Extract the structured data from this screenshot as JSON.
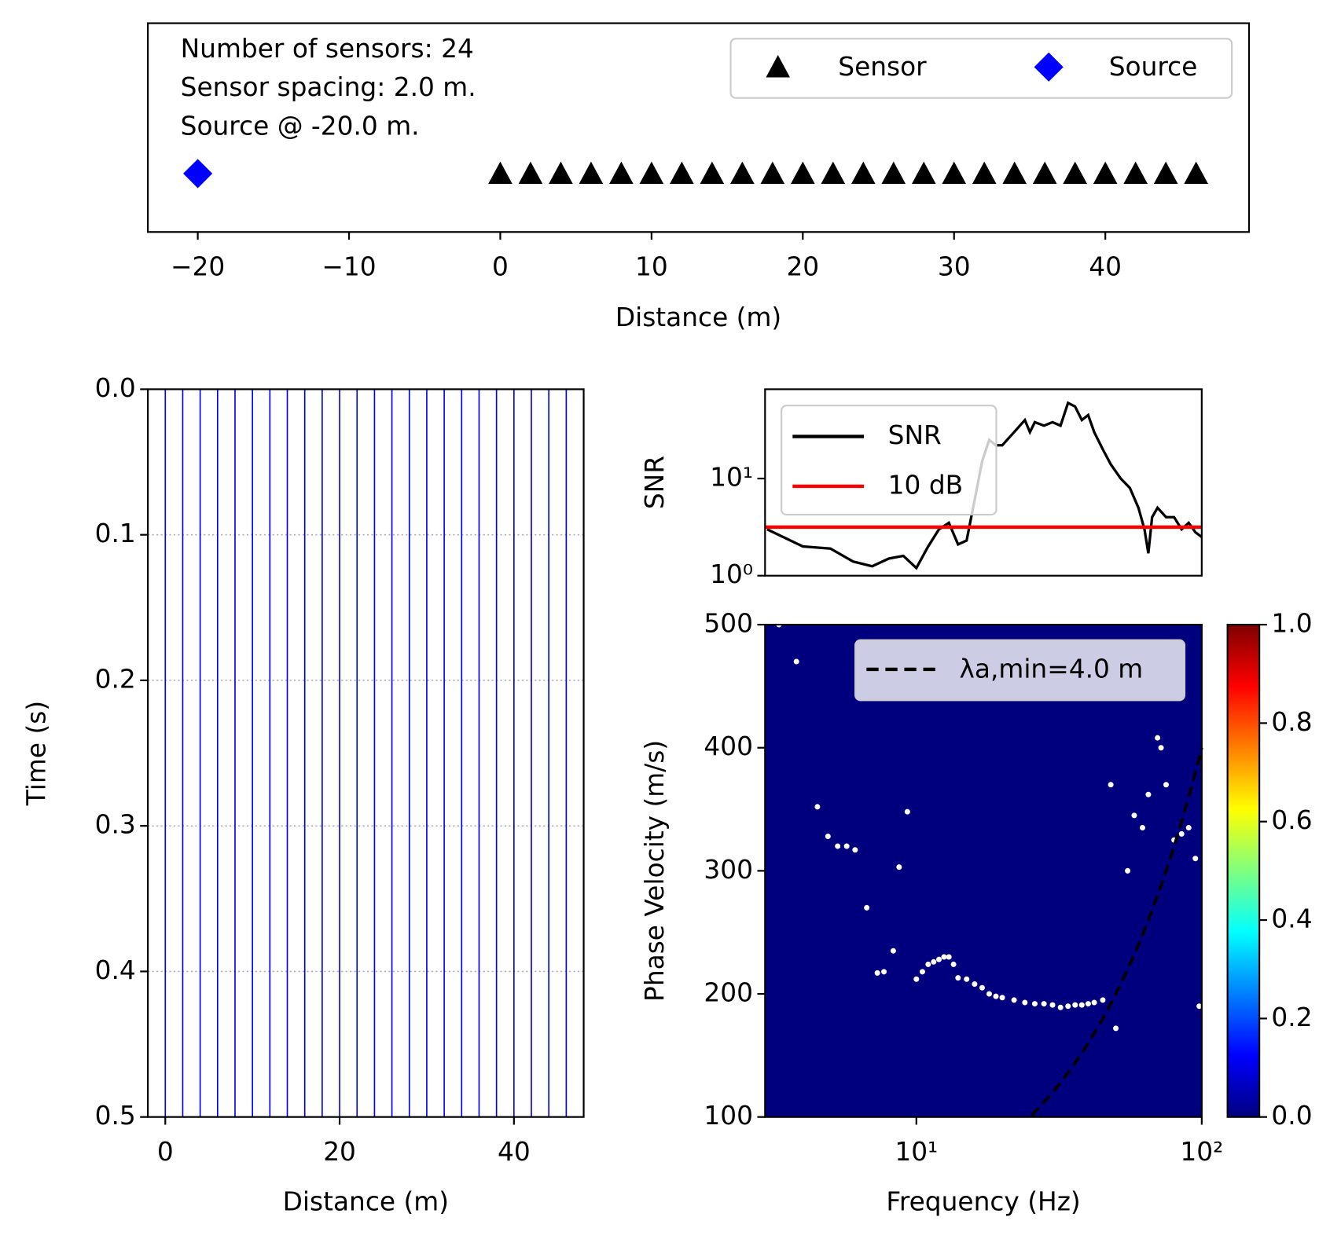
{
  "chart_data": [
    {
      "type": "scatter",
      "annotations": [
        "Number of sensors: 24",
        "Sensor spacing: 2.0 m.",
        "Source @ -20.0 m."
      ],
      "xlabel": "Distance (m)",
      "xlim": [
        -23.3,
        49.5
      ],
      "xticks": [
        {
          "value": -20,
          "label": "−20"
        },
        {
          "value": -10,
          "label": "−10"
        },
        0,
        10,
        20,
        30,
        40
      ],
      "legend": "upper right",
      "series": [
        {
          "name": "Sensor",
          "color": "#000000",
          "marker": "triangle",
          "x": [
            0,
            2,
            4,
            6,
            8,
            10,
            12,
            14,
            16,
            18,
            20,
            22,
            24,
            26,
            28,
            30,
            32,
            34,
            36,
            38,
            40,
            42,
            44,
            46
          ]
        },
        {
          "name": "Source",
          "color": "#0000ff",
          "marker": "diamond",
          "x": [
            -20
          ]
        }
      ]
    },
    {
      "type": "waterfall",
      "xlabel": "Distance (m)",
      "ylabel": "Time (s)",
      "xlim": [
        -2,
        48
      ],
      "ylim": [
        0.5,
        0
      ],
      "xticks": [
        0,
        20,
        40
      ],
      "yticks": [
        {
          "value": 0,
          "label": "0.0"
        },
        0.1,
        0.2,
        0.3,
        0.4,
        0.5
      ],
      "grid": true,
      "color": "#0000ff",
      "offsets": [
        0,
        2,
        4,
        6,
        8,
        10,
        12,
        14,
        16,
        18,
        20,
        22,
        24,
        26,
        28,
        30,
        32,
        34,
        36,
        38,
        40,
        42,
        44,
        46
      ]
    },
    {
      "type": "line",
      "ylabel": "SNR",
      "xscale": "log",
      "yscale": "log",
      "xlim": [
        2.95,
        100
      ],
      "ylim": [
        1,
        83
      ],
      "yticks": [
        {
          "value": 1,
          "label": "10⁰"
        },
        {
          "value": 10,
          "label": "10¹"
        }
      ],
      "legend": "upper left",
      "series": [
        {
          "name": "SNR",
          "color": "#000000",
          "x": [
            3,
            4,
            5,
            6,
            7,
            8,
            9,
            10,
            11,
            12,
            13,
            14,
            15,
            16,
            17,
            18,
            19,
            20,
            22,
            24,
            25,
            26,
            28,
            30,
            32,
            34,
            36,
            38,
            40,
            42,
            45,
            48,
            52,
            56,
            60,
            63,
            65,
            67,
            70,
            75,
            80,
            85,
            90,
            95,
            100
          ],
          "values": [
            3,
            2,
            1.9,
            1.4,
            1.25,
            1.5,
            1.6,
            1.2,
            2,
            3,
            3.5,
            2.1,
            2.3,
            6,
            15,
            25,
            22,
            22,
            30,
            40,
            30,
            38,
            35,
            38,
            35,
            60,
            55,
            40,
            45,
            30,
            20,
            14,
            10,
            8,
            5,
            3,
            1.7,
            4,
            5,
            4,
            4,
            3,
            3.5,
            2.8,
            2.5
          ]
        },
        {
          "name": "10 dB",
          "color": "#ff0000",
          "x": [
            2.95,
            100
          ],
          "values": [
            3.16,
            3.16
          ]
        }
      ]
    },
    {
      "type": "dispersion",
      "xlabel": "Frequency (Hz)",
      "ylabel": "Phase Velocity (m/s)",
      "xscale": "log",
      "xlim": [
        2.95,
        100
      ],
      "ylim": [
        100,
        500
      ],
      "xticks": [
        {
          "value": 10,
          "label": "10¹"
        },
        {
          "value": 100,
          "label": "10²"
        }
      ],
      "yticks": [
        100,
        200,
        300,
        400,
        500
      ],
      "picks": {
        "color": "#ffffff",
        "x": [
          3.3,
          3.8,
          4.5,
          4.9,
          5.3,
          5.7,
          6.1,
          6.7,
          7.3,
          7.7,
          8.3,
          8.7,
          9.3,
          10,
          10.5,
          11,
          11.5,
          12,
          12.5,
          13,
          13.5,
          14,
          15,
          16,
          17,
          18,
          19,
          20,
          22,
          24,
          26,
          28,
          30,
          32,
          34,
          36,
          38,
          40,
          42,
          45,
          48,
          50,
          55,
          58,
          62,
          65,
          70,
          72,
          75,
          80,
          85,
          90,
          95,
          98
        ],
        "values": [
          500,
          470,
          352,
          328,
          320,
          320,
          317,
          270,
          217,
          218,
          235,
          303,
          348,
          212,
          218,
          224,
          226,
          228,
          230,
          230,
          224,
          213,
          212,
          208,
          205,
          200,
          198,
          197,
          195,
          193,
          192,
          192,
          191,
          189,
          190,
          191,
          191,
          192,
          193,
          195,
          370,
          172,
          300,
          345,
          335,
          362,
          408,
          400,
          370,
          325,
          330,
          335,
          310,
          190
        ]
      },
      "lambda": {
        "name": "λa,min=4.0 m",
        "value": 4.0,
        "color": "#000000"
      },
      "legend": "upper right",
      "background": "#00007f",
      "colorbar": {
        "clim": [
          0,
          1
        ],
        "ticks": [
          {
            "value": 0,
            "label": "0.0"
          },
          0.2,
          0.4,
          0.6,
          0.8,
          {
            "value": 1,
            "label": "1.0"
          }
        ],
        "colormap": [
          "#00007f",
          "#0000ff",
          "#007fff",
          "#00ffff",
          "#7fff7f",
          "#ffff00",
          "#ff7f00",
          "#ff0000",
          "#7f0000"
        ]
      }
    }
  ]
}
